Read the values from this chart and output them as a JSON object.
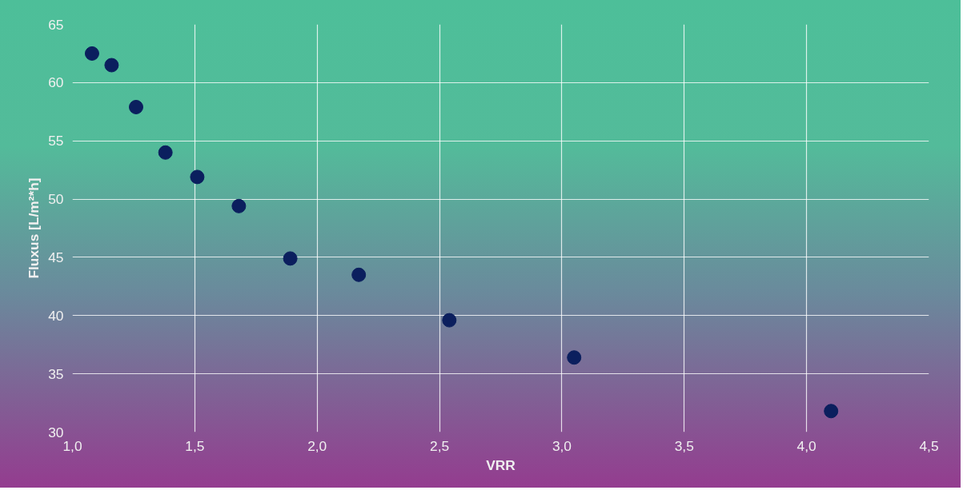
{
  "chart_data": {
    "type": "scatter",
    "xlabel": "VRR",
    "ylabel": "Fluxus [L/m²*h]",
    "x": [
      1.08,
      1.16,
      1.26,
      1.38,
      1.51,
      1.68,
      1.89,
      2.17,
      2.54,
      3.05,
      4.1
    ],
    "series": [
      {
        "color": "#0b1f5e",
        "values": [
          62.5,
          61.5,
          57.9,
          54.0,
          51.9,
          49.4,
          44.9,
          43.5,
          39.6,
          36.4,
          31.8
        ]
      }
    ],
    "xlim": [
      1.0,
      4.5
    ],
    "xticks": [
      {
        "value": 1.0,
        "label": "1,0"
      },
      {
        "value": 1.5,
        "label": "1,5"
      },
      {
        "value": 2.0,
        "label": "2,0"
      },
      {
        "value": 2.5,
        "label": "2,5"
      },
      {
        "value": 3.0,
        "label": "3,0"
      },
      {
        "value": 3.5,
        "label": "3,5"
      },
      {
        "value": 4.0,
        "label": "4,0"
      },
      {
        "value": 4.5,
        "label": "4,5"
      }
    ],
    "ylim": [
      30,
      65
    ],
    "yticks": [
      30,
      35,
      40,
      45,
      50,
      55,
      60,
      65
    ],
    "grid": true,
    "marker": "circle"
  }
}
